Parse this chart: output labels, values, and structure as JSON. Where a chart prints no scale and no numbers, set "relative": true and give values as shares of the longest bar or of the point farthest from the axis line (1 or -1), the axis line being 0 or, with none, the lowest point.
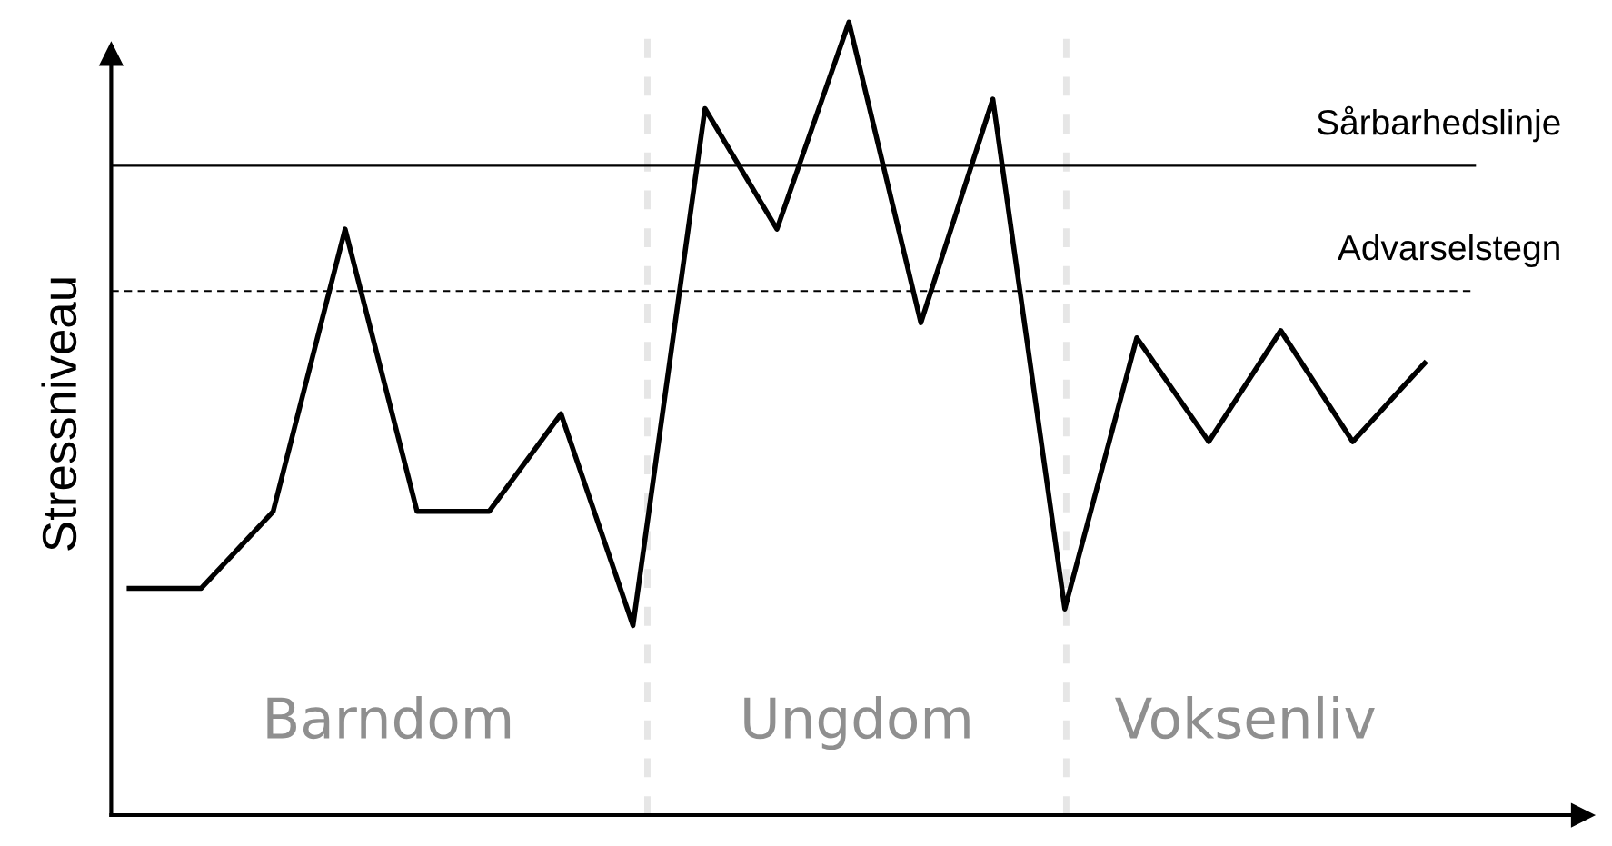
{
  "chart_data": {
    "type": "line",
    "relative": true,
    "ylabel": "Stressniveau",
    "categories": [
      null,
      null,
      null,
      null,
      null,
      null,
      null,
      null,
      null,
      null,
      null,
      null,
      null,
      null,
      null,
      null,
      null,
      null,
      null
    ],
    "series": [
      {
        "color": "#000000",
        "values": [
          0.286,
          0.286,
          0.383,
          0.739,
          0.383,
          0.383,
          0.506,
          0.239,
          0.891,
          0.739,
          1,
          0.621,
          0.903,
          0.26,
          0.602,
          0.471,
          0.611,
          0.471,
          0.57
        ]
      }
    ],
    "ref_lines": [
      {
        "axis": "y",
        "value": 0.819,
        "label": "Sårbarhedslinje",
        "color": "#000000",
        "line_style": "solid"
      },
      {
        "axis": "y",
        "value": 0.661,
        "label": "Advarselstegn",
        "color": "#000000",
        "line_style": "dashed"
      }
    ],
    "annotations": [
      "Barndom",
      "Ungdom",
      "Voksenliv"
    ],
    "legend": false,
    "marker": "none",
    "line_style": "solid"
  }
}
